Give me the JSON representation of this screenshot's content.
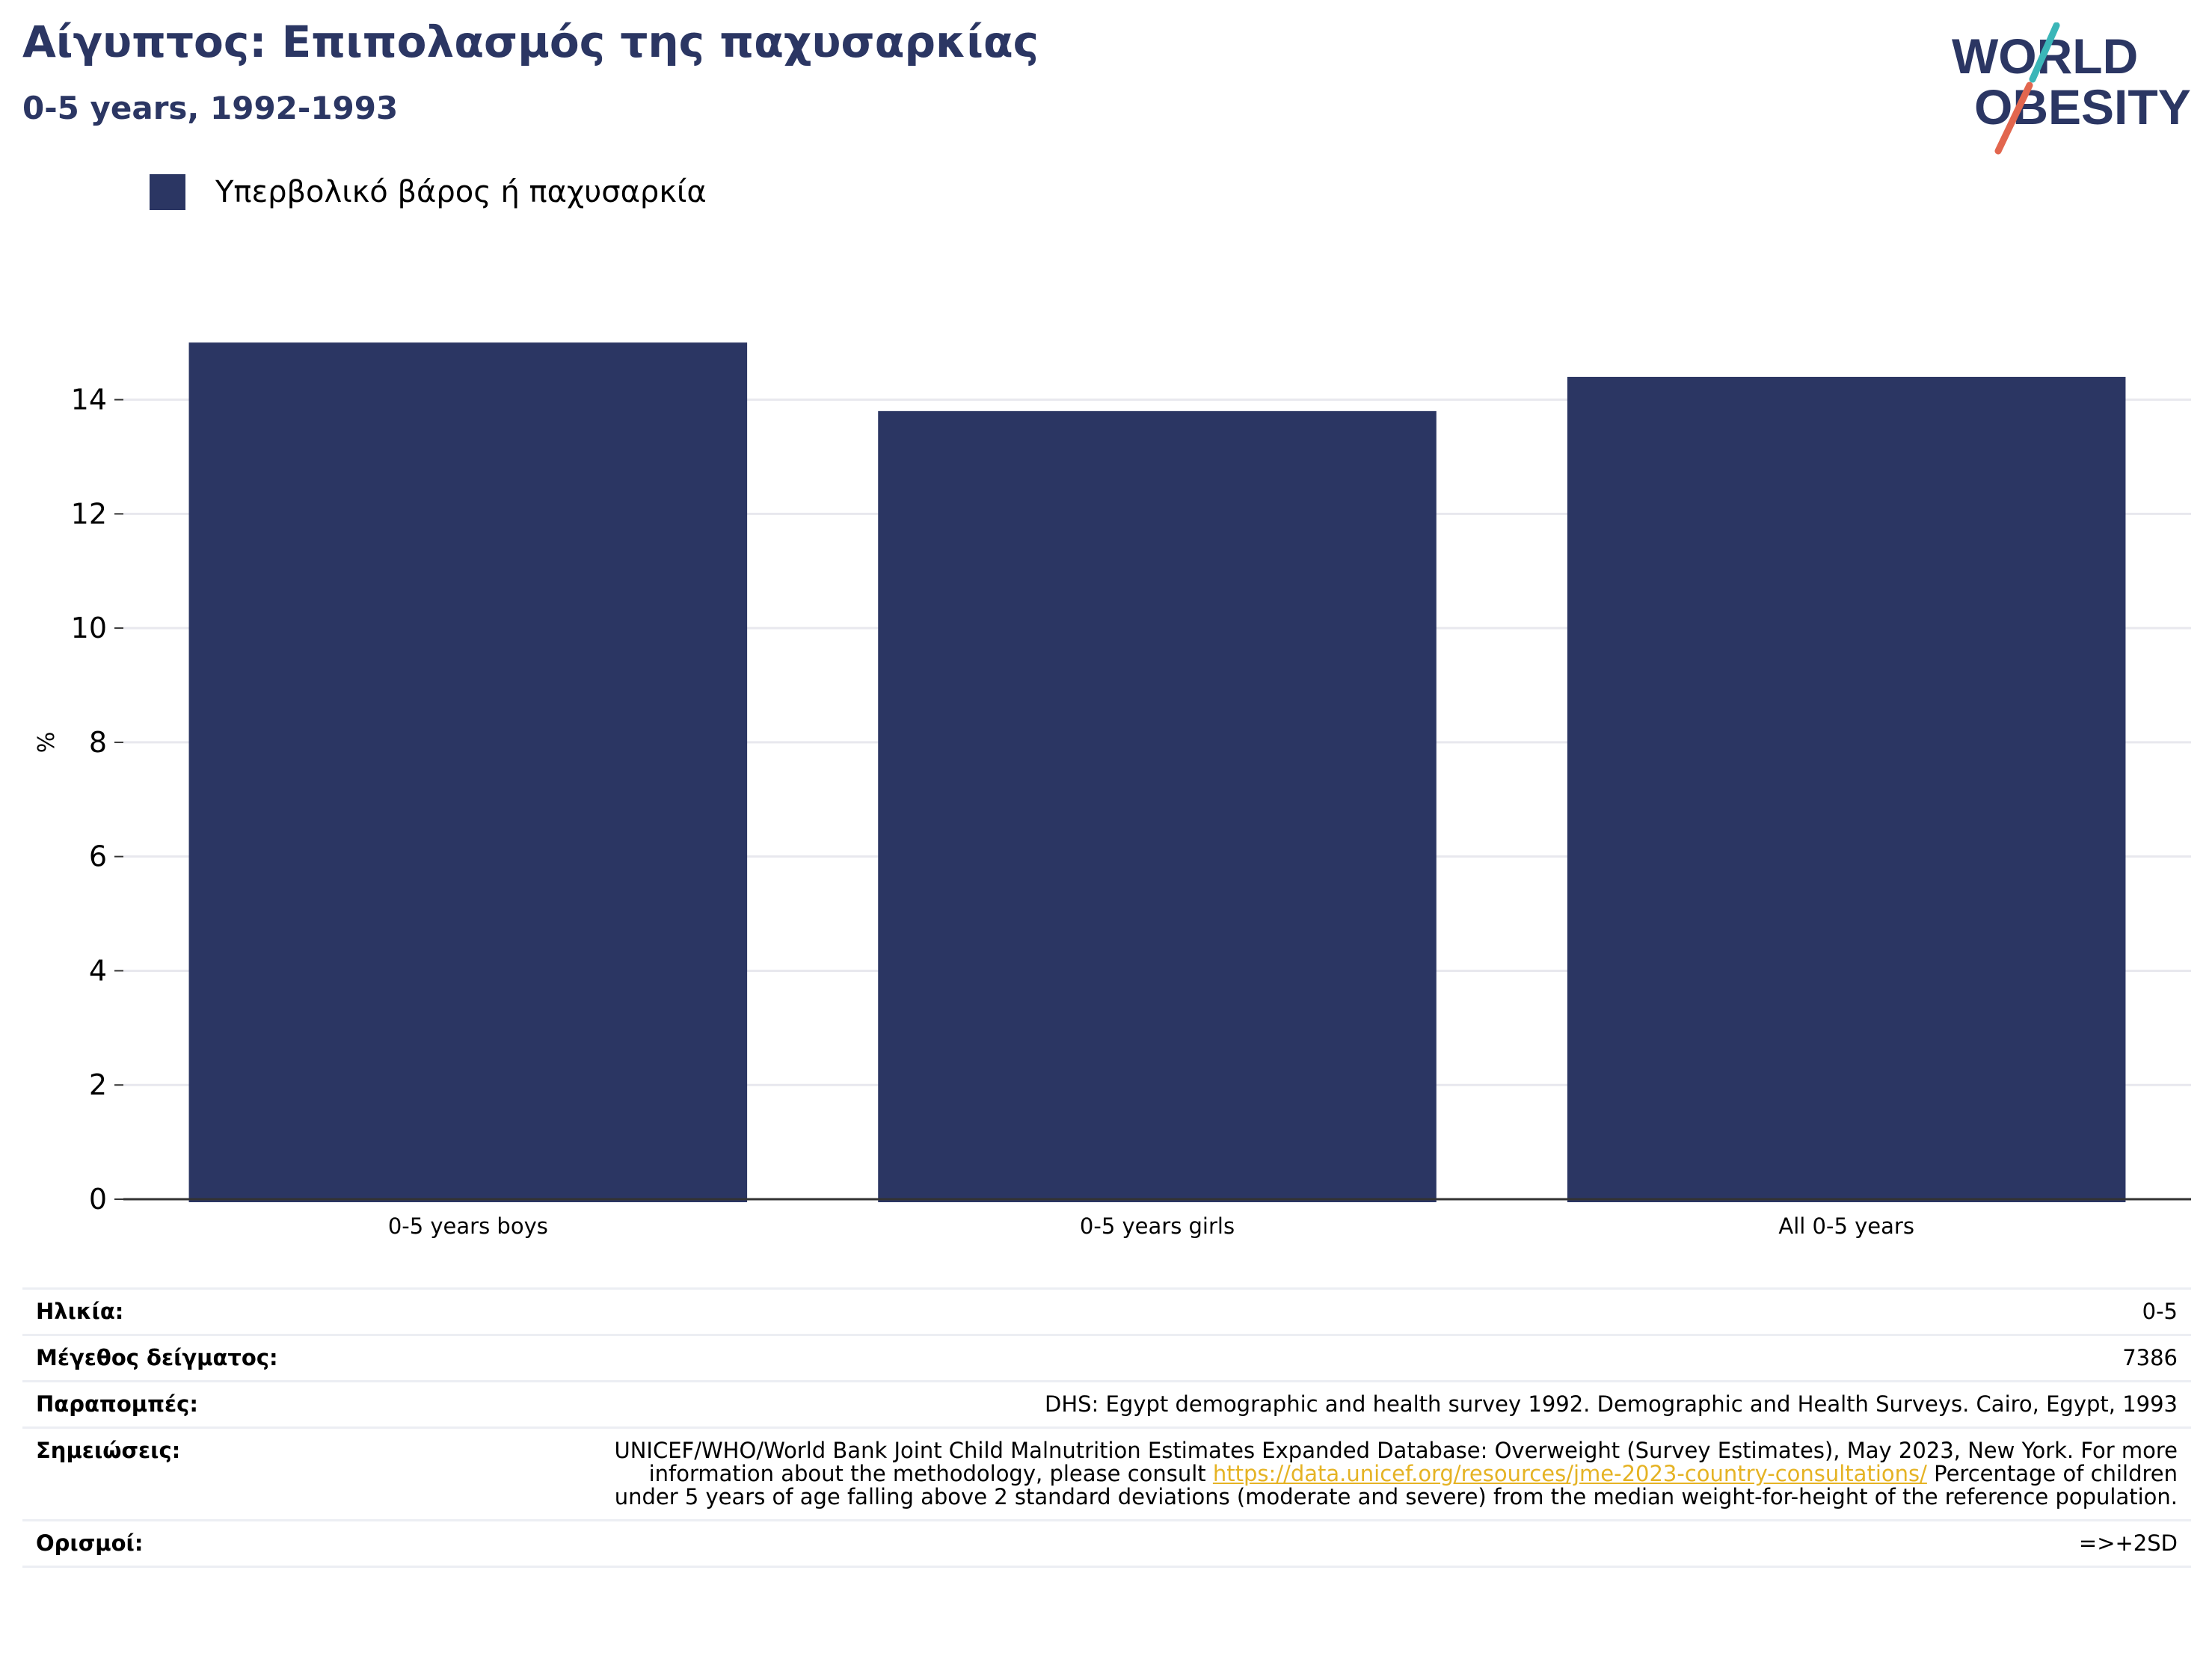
{
  "header": {
    "title": "Αίγυπτος: Επιπολασμός της παχυσαρκίας",
    "subtitle": "0-5 years, 1992-1993"
  },
  "logo": {
    "line1": "WORLD",
    "line2": "OBESITY",
    "colors": {
      "text": "#2b3663",
      "slash_top": "#3bb6b8",
      "slash_bottom": "#e2664e"
    }
  },
  "legend": {
    "label": "Υπερβολικό βάρος ή παχυσαρκία",
    "color": "#2b3663"
  },
  "chart_data": {
    "type": "bar",
    "categories": [
      "0-5 years boys",
      "0-5 years girls",
      "All 0-5 years"
    ],
    "series": [
      {
        "name": "Υπερβολικό βάρος ή παχυσαρκία",
        "values": [
          15.0,
          13.8,
          14.4
        ],
        "color": "#2b3663"
      }
    ],
    "ylabel": "%",
    "yticks": [
      0,
      2,
      4,
      6,
      8,
      10,
      12,
      14
    ],
    "ylim": [
      0,
      15.5
    ],
    "grid": true,
    "legend_position": "top-left"
  },
  "info": {
    "age": {
      "label": "Ηλικία:",
      "value": "0-5"
    },
    "sample": {
      "label": "Μέγεθος δείγματος:",
      "value": "7386"
    },
    "references": {
      "label": "Παραπομπές:",
      "value": "DHS: Egypt demographic and health survey 1992. Demographic and Health Surveys. Cairo, Egypt, 1993"
    },
    "notes": {
      "label": "Σημειώσεις:",
      "before": "UNICEF/WHO/World Bank Joint Child Malnutrition Estimates Expanded Database: Overweight (Survey Estimates), May 2023, New York. For more information about the methodology, please consult ",
      "link": "https://data.unicef.org/resources/jme-2023-country-consultations/",
      "after": " Percentage of children under 5 years of age falling above 2 standard deviations (moderate and severe) from the median weight-for-height of the reference population."
    },
    "definitions": {
      "label": "Ορισμοί:",
      "value": "=>+2SD"
    }
  }
}
